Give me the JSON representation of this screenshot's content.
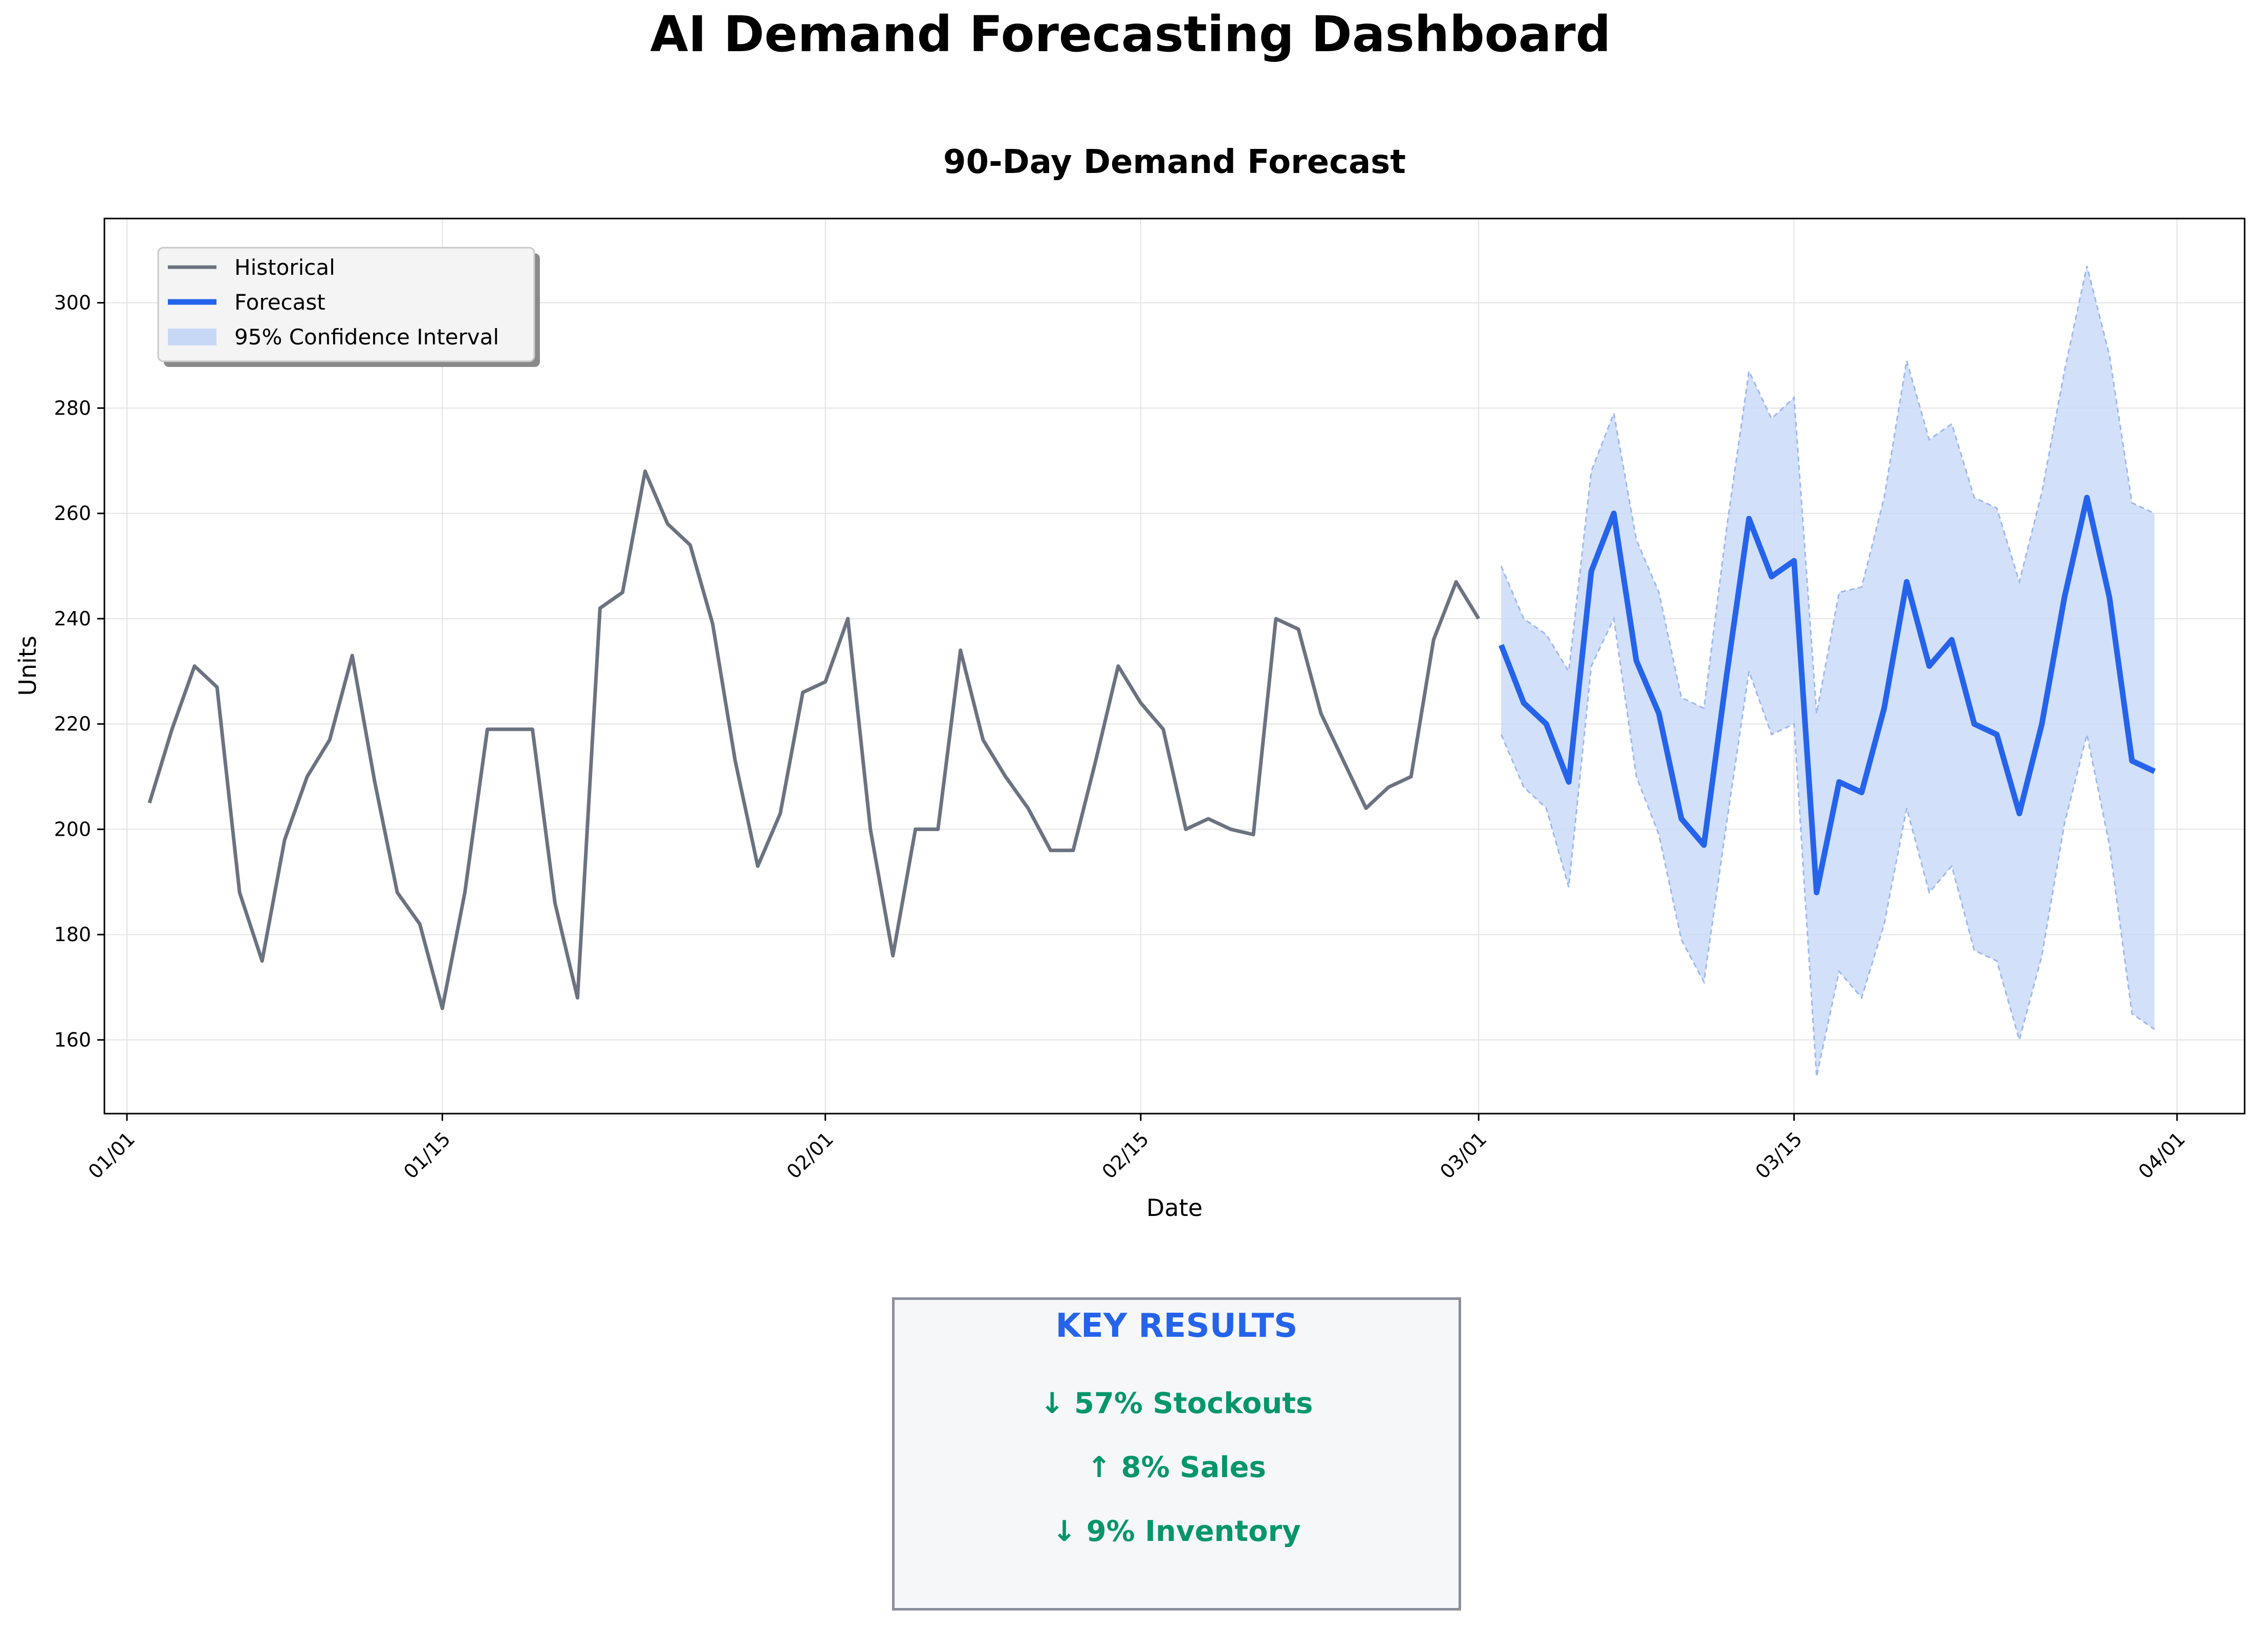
{
  "title": "AI Demand Forecasting Dashboard",
  "chart_data": {
    "type": "line",
    "title": "90-Day Demand Forecast",
    "xlabel": "Date",
    "ylabel": "Units",
    "x_ticks": [
      "01/01",
      "01/15",
      "02/01",
      "02/15",
      "03/01",
      "03/15",
      "04/01"
    ],
    "y_ticks": [
      160,
      180,
      200,
      220,
      240,
      260,
      280,
      300
    ],
    "xlim": [
      "12/31",
      "04/04"
    ],
    "ylim": [
      146,
      316
    ],
    "grid": true,
    "legend": {
      "position": "top-left",
      "entries": [
        "Historical",
        "Forecast",
        "95% Confidence Interval"
      ]
    },
    "colors": {
      "historical": "#6b7280",
      "forecast": "#2563eb",
      "interval": "#c7d8f7"
    },
    "series": [
      {
        "name": "Historical",
        "dates": [
          "01/02",
          "01/03",
          "01/04",
          "01/05",
          "01/06",
          "01/07",
          "01/08",
          "01/09",
          "01/10",
          "01/11",
          "01/12",
          "01/13",
          "01/14",
          "01/15",
          "01/16",
          "01/17",
          "01/18",
          "01/19",
          "01/20",
          "01/21",
          "01/22",
          "01/23",
          "01/24",
          "01/25",
          "01/26",
          "01/27",
          "01/28",
          "01/29",
          "01/30",
          "01/31",
          "02/01",
          "02/02",
          "02/03",
          "02/04",
          "02/05",
          "02/06",
          "02/07",
          "02/08",
          "02/09",
          "02/10",
          "02/11",
          "02/12",
          "02/13",
          "02/14",
          "02/15",
          "02/16",
          "02/17",
          "02/18",
          "02/19",
          "02/20",
          "02/21",
          "02/22",
          "02/23",
          "02/24",
          "02/25",
          "02/26",
          "02/27",
          "02/28",
          "02/29",
          "03/01"
        ],
        "values": [
          205,
          219,
          231,
          227,
          188,
          175,
          198,
          210,
          217,
          233,
          209,
          188,
          182,
          166,
          188,
          219,
          219,
          219,
          186,
          168,
          242,
          245,
          268,
          258,
          254,
          239,
          213,
          193,
          203,
          226,
          228,
          240,
          200,
          176,
          200,
          200,
          234,
          217,
          210,
          204,
          196,
          196,
          213,
          231,
          224,
          219,
          200,
          202,
          200,
          199,
          240,
          238,
          222,
          213,
          204,
          208,
          210,
          236,
          247,
          240
        ]
      },
      {
        "name": "Forecast",
        "dates": [
          "03/02",
          "03/03",
          "03/04",
          "03/05",
          "03/06",
          "03/07",
          "03/08",
          "03/09",
          "03/10",
          "03/11",
          "03/12",
          "03/13",
          "03/14",
          "03/15",
          "03/16",
          "03/17",
          "03/18",
          "03/19",
          "03/20",
          "03/21",
          "03/22",
          "03/23",
          "03/24",
          "03/25",
          "03/26",
          "03/27",
          "03/28",
          "03/29",
          "03/30",
          "03/31"
        ],
        "values": [
          235,
          224,
          220,
          209,
          249,
          260,
          232,
          222,
          202,
          197,
          229,
          259,
          248,
          251,
          188,
          209,
          207,
          223,
          247,
          231,
          236,
          220,
          218,
          203,
          220,
          244,
          263,
          244,
          213,
          211
        ],
        "lower": [
          218,
          208,
          204,
          189,
          231,
          240,
          210,
          199,
          179,
          171,
          201,
          230,
          218,
          220,
          153,
          173,
          168,
          182,
          204,
          188,
          193,
          177,
          175,
          160,
          176,
          201,
          218,
          197,
          165,
          162
        ],
        "upper": [
          250,
          240,
          237,
          230,
          268,
          279,
          255,
          245,
          225,
          223,
          257,
          287,
          278,
          282,
          222,
          245,
          246,
          263,
          289,
          274,
          277,
          263,
          261,
          247,
          264,
          287,
          307,
          290,
          262,
          260
        ]
      }
    ]
  },
  "key_results": {
    "title": "KEY RESULTS",
    "items": [
      "↓ 57% Stockouts",
      "↑ 8% Sales",
      "↓ 9% Inventory"
    ]
  }
}
